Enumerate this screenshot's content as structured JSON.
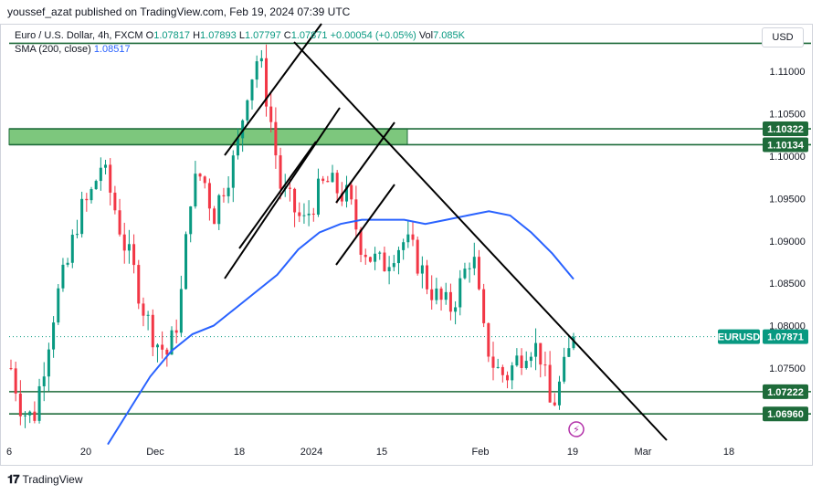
{
  "header": {
    "text": "youssef_azat published on TradingView.com, Feb 19, 2024 07:39 UTC"
  },
  "legend": {
    "symbol": "Euro / U.S. Dollar, 4h, FXCM",
    "o_label": "O",
    "o": "1.07817",
    "h_label": "H",
    "h": "1.07893",
    "l_label": "L",
    "l": "1.07797",
    "c_label": "C",
    "c": "1.07871",
    "change": "+0.00054 (+0.05%)",
    "vol_label": "Vol",
    "vol": "7.085K",
    "sma_label": "SMA (200, close)",
    "sma": "1.08517"
  },
  "currency_button": "USD",
  "footer": {
    "brand": "TradingView",
    "logo": "tv-logo-icon"
  },
  "colors": {
    "up": "#089981",
    "down": "#f23645",
    "sma": "#2962ff",
    "zone": "#5cb85c",
    "level": "#1e6b3a",
    "trend": "#000000"
  },
  "chart_data": {
    "type": "candlestick",
    "symbol": "EURUSD",
    "timeframe": "4h",
    "ylim": [
      1.0665,
      1.1155
    ],
    "y_ticks": [
      "1.11000",
      "1.10500",
      "1.10000",
      "1.09500",
      "1.09000",
      "1.08500",
      "1.08000",
      "1.07500"
    ],
    "x_ticks": [
      "6",
      "20",
      "Dec",
      "18",
      "2024",
      "15",
      "Feb",
      "19",
      "Mar",
      "18"
    ],
    "price_tags": [
      {
        "label": "1.10322",
        "value": 1.10322
      },
      {
        "label": "1.10134",
        "value": 1.10134
      },
      {
        "label": "EURUSD",
        "value": 1.07871
      },
      {
        "label": "1.07871",
        "value": 1.07871
      },
      {
        "label": "1.07222",
        "value": 1.07222
      },
      {
        "label": "1.06960",
        "value": 1.0696
      }
    ],
    "horizontal_levels": [
      1.1133,
      1.10322,
      1.10134,
      1.07222,
      1.0696
    ],
    "resistance_zone": [
      1.10134,
      1.10322
    ],
    "sma_200": [
      [
        1.066,
        1.07,
        1.074,
        1.077,
        1.079,
        1.08,
        1.082,
        1.084,
        1.086,
        1.089,
        1.091,
        1.092,
        1.0925,
        1.0925,
        1.0925,
        1.092,
        1.0925,
        1.093,
        1.0935,
        1.093,
        1.091,
        1.0885,
        1.0855
      ]
    ],
    "close_path": [
      1.075,
      1.07,
      1.069,
      1.076,
      1.083,
      1.087,
      1.093,
      1.095,
      1.099,
      1.095,
      1.09,
      1.086,
      1.081,
      1.078,
      1.0765,
      1.082,
      1.096,
      1.098,
      1.093,
      1.097,
      1.1,
      1.108,
      1.112,
      1.105,
      1.096,
      1.094,
      1.092,
      1.095,
      1.097,
      1.096,
      1.095,
      1.09,
      1.088,
      1.087,
      1.089,
      1.09,
      1.088,
      1.085,
      1.083,
      1.082,
      1.085,
      1.089,
      1.079,
      1.075,
      1.074,
      1.076,
      1.078,
      1.077,
      1.07,
      1.074,
      1.0787
    ],
    "last_price": 1.07871
  }
}
